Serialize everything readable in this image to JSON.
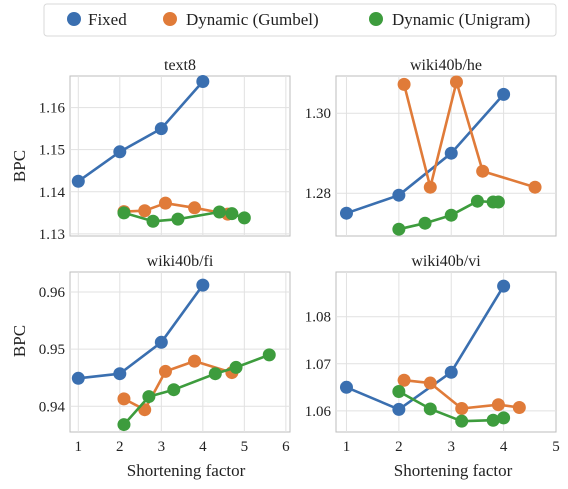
{
  "legend": {
    "items": [
      {
        "label": "Fixed",
        "color": "#3a6fb0"
      },
      {
        "label": "Dynamic (Gumbel)",
        "color": "#e07b39"
      },
      {
        "label": "Dynamic (Unigram)",
        "color": "#3d9c3d"
      }
    ]
  },
  "xlabel": "Shortening factor",
  "ylabel": "BPC",
  "chart_data": [
    {
      "type": "line",
      "title": "text8",
      "xlim": [
        0.8,
        6.1
      ],
      "ylim": [
        1.1295,
        1.1675
      ],
      "xticks": [
        1,
        2,
        3,
        4,
        5,
        6
      ],
      "xticklabels": [
        "",
        "",
        "",
        "",
        "",
        ""
      ],
      "yticks": [
        1.13,
        1.14,
        1.15,
        1.16
      ],
      "yticklabels": [
        "1.13",
        "1.14",
        "1.15",
        "1.16"
      ],
      "ylabel": "BPC",
      "xlabel": "",
      "grid": true,
      "series": [
        {
          "name": "Fixed",
          "x": [
            1,
            2,
            3,
            4
          ],
          "y": [
            1.1425,
            1.1495,
            1.155,
            1.1662
          ]
        },
        {
          "name": "Dynamic (Gumbel)",
          "x": [
            2.1,
            2.6,
            3.1,
            3.8,
            4.6
          ],
          "y": [
            1.1353,
            1.1355,
            1.1373,
            1.1362,
            1.1347
          ]
        },
        {
          "name": "Dynamic (Unigram)",
          "x": [
            2.1,
            2.8,
            3.4,
            4.4,
            4.7,
            5.0
          ],
          "y": [
            1.135,
            1.133,
            1.1335,
            1.1352,
            1.1348,
            1.1338
          ]
        }
      ]
    },
    {
      "type": "line",
      "title": "wiki40b/he",
      "xlim": [
        0.8,
        5.0
      ],
      "ylim": [
        1.2693,
        1.3093
      ],
      "xticks": [
        1,
        2,
        3,
        4,
        5
      ],
      "xticklabels": [
        "",
        "",
        "",
        "",
        ""
      ],
      "yticks": [
        1.28,
        1.3
      ],
      "yticklabels": [
        "1.28",
        "1.30"
      ],
      "ylabel": "",
      "xlabel": "",
      "grid": true,
      "series": [
        {
          "name": "Fixed",
          "x": [
            1,
            2,
            3,
            4
          ],
          "y": [
            1.275,
            1.2795,
            1.29,
            1.3047
          ]
        },
        {
          "name": "Dynamic (Gumbel)",
          "x": [
            2.1,
            2.6,
            3.1,
            3.6,
            4.6
          ],
          "y": [
            1.3072,
            1.2815,
            1.3078,
            1.2855,
            1.2815
          ]
        },
        {
          "name": "Dynamic (Unigram)",
          "x": [
            2.0,
            2.5,
            3.0,
            3.5,
            3.8,
            3.9
          ],
          "y": [
            1.271,
            1.2725,
            1.2745,
            1.278,
            1.2778,
            1.2778
          ]
        }
      ]
    },
    {
      "type": "line",
      "title": "wiki40b/fi",
      "xlim": [
        0.8,
        6.1
      ],
      "ylim": [
        0.9355,
        0.9635
      ],
      "xticks": [
        1,
        2,
        3,
        4,
        5,
        6
      ],
      "xticklabels": [
        "1",
        "2",
        "3",
        "4",
        "5",
        "6"
      ],
      "yticks": [
        0.94,
        0.95,
        0.96
      ],
      "yticklabels": [
        "0.94",
        "0.95",
        "0.96"
      ],
      "ylabel": "BPC",
      "xlabel": "Shortening factor",
      "grid": true,
      "series": [
        {
          "name": "Fixed",
          "x": [
            1,
            2,
            3,
            4
          ],
          "y": [
            0.9449,
            0.9457,
            0.9512,
            0.9612
          ]
        },
        {
          "name": "Dynamic (Gumbel)",
          "x": [
            2.1,
            2.6,
            3.1,
            3.8,
            4.7
          ],
          "y": [
            0.9413,
            0.9394,
            0.9461,
            0.9479,
            0.9459
          ]
        },
        {
          "name": "Dynamic (Unigram)",
          "x": [
            2.1,
            2.7,
            3.3,
            4.3,
            4.8,
            5.6
          ],
          "y": [
            0.9368,
            0.9417,
            0.9429,
            0.9457,
            0.9468,
            0.949
          ]
        }
      ]
    },
    {
      "type": "line",
      "title": "wiki40b/vi",
      "xlim": [
        0.8,
        5.0
      ],
      "ylim": [
        1.0555,
        1.0895
      ],
      "xticks": [
        1,
        2,
        3,
        4,
        5
      ],
      "xticklabels": [
        "1",
        "2",
        "3",
        "4",
        "5"
      ],
      "yticks": [
        1.06,
        1.07,
        1.08
      ],
      "yticklabels": [
        "1.06",
        "1.07",
        "1.08"
      ],
      "ylabel": "",
      "xlabel": "Shortening factor",
      "grid": true,
      "series": [
        {
          "name": "Fixed",
          "x": [
            1,
            2,
            3,
            4
          ],
          "y": [
            1.065,
            1.0603,
            1.0682,
            1.0865
          ]
        },
        {
          "name": "Dynamic (Gumbel)",
          "x": [
            2.1,
            2.6,
            3.2,
            3.9,
            4.3
          ],
          "y": [
            1.0665,
            1.0659,
            1.0605,
            1.0613,
            1.0607
          ]
        },
        {
          "name": "Dynamic (Unigram)",
          "x": [
            2.0,
            2.6,
            3.2,
            3.8,
            4.0
          ],
          "y": [
            1.0641,
            1.0604,
            1.0578,
            1.058,
            1.0585
          ]
        }
      ]
    }
  ]
}
